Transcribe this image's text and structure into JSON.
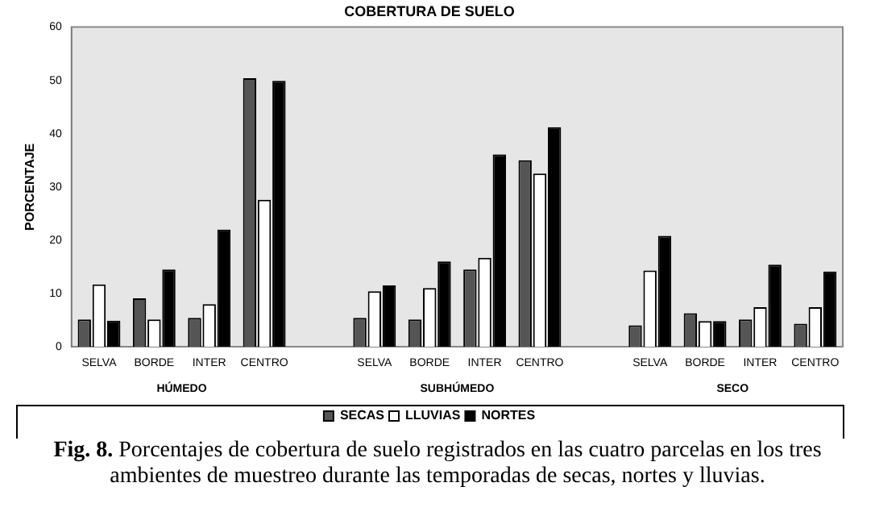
{
  "chart_data": {
    "type": "bar",
    "title": "COBERTURA DE SUELO",
    "ylabel": "PORCENTAJE",
    "categories": [
      "SELVA",
      "BORDE",
      "INTER",
      "CENTRO",
      null,
      "SELVA",
      "BORDE",
      "INTER",
      "CENTRO",
      null,
      "SELVA",
      "BORDE",
      "INTER",
      "CENTRO"
    ],
    "series": [
      {
        "name": "SECAS",
        "color": "#555555",
        "values": [
          5.1,
          9.1,
          5.4,
          50.4,
          null,
          5.4,
          5.1,
          14.5,
          35.0,
          null,
          4.0,
          6.3,
          5.1,
          4.3
        ]
      },
      {
        "name": "LLUVIAS",
        "color": "#ffffff",
        "values": [
          11.7,
          5.1,
          8.0,
          27.6,
          null,
          10.4,
          11.0,
          16.7,
          32.5,
          null,
          14.3,
          4.8,
          7.4,
          7.4
        ]
      },
      {
        "name": "NORTES",
        "color": "#000000",
        "values": [
          4.9,
          14.5,
          22.0,
          49.9,
          null,
          11.5,
          16.0,
          36.1,
          41.2,
          null,
          20.8,
          4.8,
          15.4,
          14.1
        ]
      }
    ],
    "ylim": [
      0,
      60
    ],
    "yticks": [
      0,
      10,
      20,
      30,
      40,
      50,
      60
    ],
    "grid": false,
    "legend": "bottom",
    "annotations": [
      "HÚMEDO",
      "SUBHÚMEDO",
      "SECO",
      "**Fig. 8.** Porcentajes de cobertura de suelo registrados en las cuatro parcelas en los tres ambientes de muestreo durante las temporadas de secas, nortes y lluvias."
    ]
  }
}
